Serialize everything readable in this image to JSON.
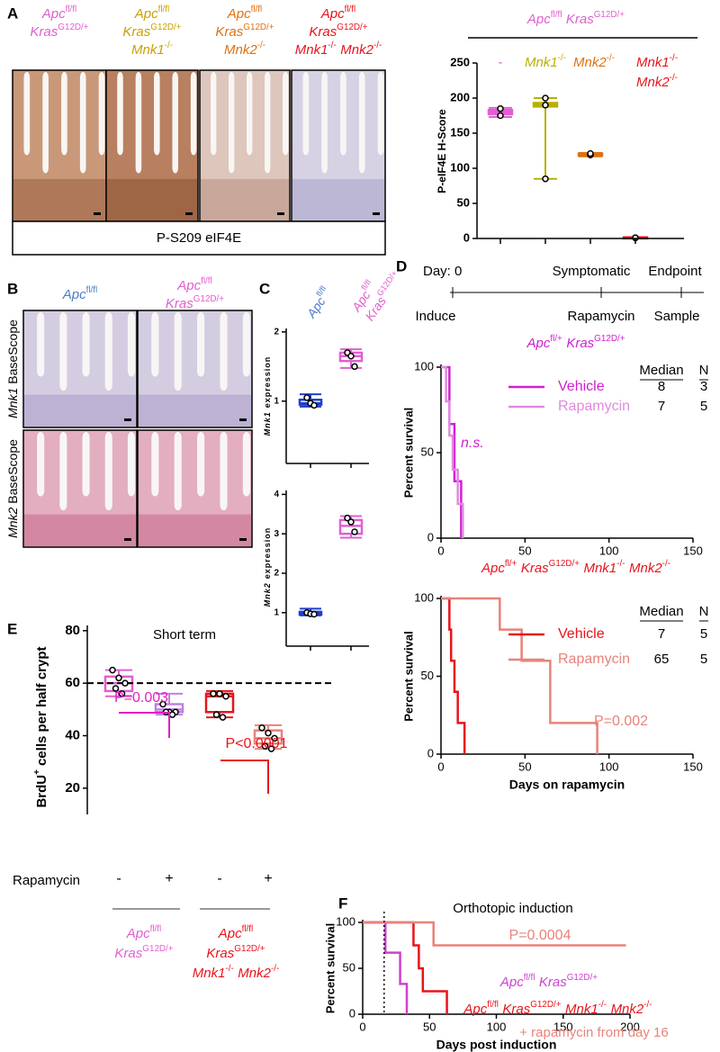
{
  "panel_labels": [
    "A",
    "B",
    "C",
    "D",
    "E",
    "F"
  ],
  "panel_a": {
    "columns": [
      {
        "genotype": [
          [
            [
              "Apc",
              "fl/fl"
            ]
          ],
          [
            [
              "Kras",
              "G12D/+"
            ]
          ]
        ],
        "color": "#e060d0"
      },
      {
        "genotype": [
          [
            [
              "Apc",
              "fl/fl"
            ]
          ],
          [
            [
              "Kras",
              "G12D/+"
            ]
          ],
          [
            [
              "Mnk1",
              "-/-"
            ]
          ]
        ],
        "color": "#c8a000"
      },
      {
        "genotype": [
          [
            [
              "Apc",
              "fl/fl"
            ]
          ],
          [
            [
              "Kras",
              "G12D/+"
            ]
          ],
          [
            [
              "Mnk2",
              "-/-"
            ]
          ]
        ],
        "color": "#e07010"
      },
      {
        "genotype": [
          [
            [
              "Apc",
              "fl/fl"
            ]
          ],
          [
            [
              "Kras",
              "G12D/+"
            ]
          ],
          [
            [
              "Mnk1",
              "-/-"
            ],
            [
              "Mnk2",
              "-/-"
            ]
          ]
        ],
        "color": "#e8141c"
      }
    ],
    "stain": "P-S209 eIF4E"
  },
  "panel_b": {
    "columns": [
      {
        "genotype": [
          [
            [
              "Apc",
              "fl/fl"
            ]
          ]
        ],
        "color": "#4a7cc8"
      },
      {
        "genotype": [
          [
            [
              "Apc",
              "fl/fl"
            ]
          ],
          [
            [
              "Kras",
              "G12D/+"
            ]
          ]
        ],
        "color": "#e060d0"
      }
    ],
    "rows": [
      {
        "gene": "Mnk1",
        "text": "BaseScope"
      },
      {
        "gene": "Mnk2",
        "text": "BaseScope"
      }
    ]
  },
  "panel_d_timeline": {
    "top": [
      "Day: 0",
      "Symptomatic",
      "Endpoint"
    ],
    "bottom": [
      "Induce",
      "Rapamycin",
      "Sample"
    ]
  },
  "chart_data": [
    {
      "type": "box",
      "header": [
        [
          [
            "Apc",
            "fl/fl"
          ],
          [
            "Kras",
            "G12D/+"
          ]
        ]
      ],
      "header_color": "#e060d0",
      "categories": [
        "-",
        [
          [
            [
              "Mnk1",
              "-/-"
            ]
          ]
        ],
        [
          [
            [
              "Mnk2",
              "-/-"
            ]
          ]
        ],
        [
          [
            [
              "Mnk1",
              "-/-"
            ]
          ],
          [
            [
              "Mnk2",
              "-/-"
            ]
          ]
        ]
      ],
      "colors": [
        "#e060d0",
        "#b8b000",
        "#e07010",
        "#e8141c"
      ],
      "ylabel": "P-eIF4E H-Score",
      "ylim": [
        0,
        250
      ],
      "yticks": [
        0,
        50,
        100,
        150,
        200,
        250
      ],
      "boxes": [
        {
          "min": 173,
          "q1": 177,
          "median": 180,
          "q3": 183,
          "max": 186,
          "points": [
            185,
            175
          ]
        },
        {
          "min": 85,
          "q1": 188,
          "median": 190,
          "q3": 193,
          "max": 200,
          "points": [
            200,
            190,
            85
          ]
        },
        {
          "min": 117,
          "q1": 118,
          "median": 120,
          "q3": 121,
          "max": 122,
          "points": [
            120,
            119,
            121
          ]
        },
        {
          "min": 0,
          "q1": 0.5,
          "median": 1,
          "q3": 1.5,
          "max": 2,
          "points": [
            1,
            1,
            1
          ]
        }
      ]
    },
    {
      "type": "box",
      "categories": [
        [
          [
            [
              "Apc",
              "fl/fl"
            ]
          ]
        ],
        [
          [
            [
              "Apc",
              "fl/fl"
            ]
          ],
          [
            [
              "Kras",
              "G12D/+"
            ]
          ]
        ]
      ],
      "colors": [
        "#1f3fd0",
        "#e060d0"
      ],
      "ylabel": {
        "gene": "Mnk1",
        "text": "expression"
      },
      "ylim": [
        0.1,
        2.05
      ],
      "yticks": [
        1,
        2
      ],
      "boxes": [
        {
          "min": 0.92,
          "q1": 0.95,
          "median": 0.97,
          "q3": 1.02,
          "max": 1.1,
          "points": [
            1.05,
            0.97,
            0.94
          ]
        },
        {
          "min": 1.48,
          "q1": 1.58,
          "median": 1.65,
          "q3": 1.7,
          "max": 1.75,
          "points": [
            1.7,
            1.65,
            1.5
          ]
        }
      ]
    },
    {
      "type": "box",
      "colors": [
        "#1f3fd0",
        "#e060d0"
      ],
      "ylabel": {
        "gene": "Mnk2",
        "text": "expression"
      },
      "ylim": [
        0.15,
        4.1
      ],
      "yticks": [
        1,
        2,
        3,
        4
      ],
      "boxes": [
        {
          "min": 0.93,
          "q1": 0.95,
          "median": 0.98,
          "q3": 1.02,
          "max": 1.1,
          "points": [
            1,
            0.97,
            0.96
          ]
        },
        {
          "min": 2.9,
          "q1": 3.0,
          "median": 3.2,
          "q3": 3.35,
          "max": 3.45,
          "points": [
            3.4,
            3.3,
            3.05
          ]
        }
      ]
    },
    {
      "type": "survival",
      "title": [
        [
          [
            "Apc",
            "fl/+"
          ],
          [
            "Kras",
            "G12D/+"
          ]
        ]
      ],
      "title_color": "#d020d0",
      "ylabel": "Percent survival",
      "xlim": [
        0,
        150
      ],
      "ylim": [
        0,
        100
      ],
      "xticks": [
        0,
        50,
        100,
        150
      ],
      "yticks": [
        0,
        50,
        100
      ],
      "table_header": [
        "Median",
        "N"
      ],
      "annotation": "n.s.",
      "annotation_color": "#d020d0",
      "series": [
        {
          "name": "Vehicle",
          "color": "#d020d0",
          "x": [
            0,
            5,
            8,
            12
          ],
          "values": [
            100,
            66.7,
            33.3,
            0
          ],
          "median": 8,
          "n": 3
        },
        {
          "name": "Rapamycin",
          "color": "#e08ae0",
          "x": [
            0,
            3,
            5,
            7,
            10,
            13
          ],
          "values": [
            100,
            80,
            60,
            40,
            20,
            0
          ],
          "median": 7,
          "n": 5
        }
      ]
    },
    {
      "type": "survival",
      "title": [
        [
          [
            "Apc",
            "fl/+"
          ],
          [
            "Kras",
            "G12D/+"
          ],
          [
            "Mnk1",
            "-/-"
          ],
          [
            "Mnk2",
            "-/-"
          ]
        ]
      ],
      "title_color": "#e8141c",
      "ylabel": "Percent survival",
      "xlabel": "Days on rapamycin",
      "xlim": [
        0,
        150
      ],
      "ylim": [
        0,
        100
      ],
      "xticks": [
        0,
        50,
        100,
        150
      ],
      "yticks": [
        0,
        50,
        100
      ],
      "table_header": [
        "Median",
        "N"
      ],
      "annotation": "P=0.002",
      "annotation_color": "#e8837a",
      "series": [
        {
          "name": "Vehicle",
          "color": "#e8141c",
          "x": [
            0,
            5,
            6,
            8,
            10,
            14
          ],
          "values": [
            100,
            80,
            60,
            40,
            20,
            0
          ],
          "median": 7,
          "n": 5
        },
        {
          "name": "Rapamycin",
          "color": "#e8837a",
          "x": [
            0,
            35,
            48,
            65,
            93
          ],
          "values": [
            100,
            80,
            60,
            20,
            0
          ],
          "median": 65,
          "n": 5
        }
      ]
    },
    {
      "type": "box",
      "title": "Short term",
      "ylabel": {
        "name": "BrdU",
        "sup": "+",
        "text": "cells per half crypt"
      },
      "ylim": [
        10,
        82
      ],
      "yticks": [
        20,
        40,
        60,
        80
      ],
      "reference_line": 60,
      "row_label": "Rapamycin",
      "categories": [
        "-",
        "+",
        "-",
        "+"
      ],
      "colors": [
        "#e060d0",
        "#c080e0",
        "#e8141c",
        "#e8837a"
      ],
      "groups": [
        {
          "genotype": [
            [
              [
                "Apc",
                "fl/fl"
              ]
            ],
            [
              [
                "Kras",
                "G12D/+"
              ]
            ]
          ],
          "color": "#e060d0"
        },
        {
          "genotype": [
            [
              [
                "Apc",
                "fl/fl"
              ]
            ],
            [
              [
                "Kras",
                "G12D/+"
              ]
            ],
            [
              [
                "Mnk1",
                "-/-"
              ],
              [
                "Mnk2",
                "-/-"
              ]
            ]
          ],
          "color": "#e8141c"
        }
      ],
      "annotations": [
        {
          "text": "P=0.003",
          "color": "#e020c0"
        },
        {
          "text": "P<0.0001",
          "color": "#e8141c"
        }
      ],
      "boxes": [
        {
          "min": 55,
          "q1": 57,
          "median": 60,
          "q3": 62.5,
          "max": 65,
          "points": [
            65,
            62,
            60,
            58,
            56
          ]
        },
        {
          "min": 48,
          "q1": 49,
          "median": 50,
          "q3": 52,
          "max": 56,
          "points": [
            52,
            49,
            49,
            49,
            48
          ]
        },
        {
          "min": 47,
          "q1": 49,
          "median": 55,
          "q3": 56,
          "max": 57,
          "points": [
            56,
            56,
            55,
            48,
            47
          ]
        },
        {
          "min": 35,
          "q1": 37,
          "median": 39,
          "q3": 42,
          "max": 44,
          "points": [
            43,
            41,
            39,
            36,
            35
          ]
        }
      ]
    },
    {
      "type": "survival",
      "title": "Orthotopic induction",
      "ylabel": "Percent survival",
      "xlabel": "Days post induction",
      "xlim": [
        0,
        200
      ],
      "ylim": [
        0,
        100
      ],
      "xticks": [
        0,
        50,
        100,
        150,
        200
      ],
      "yticks": [
        0,
        50,
        100
      ],
      "marker_day": 16,
      "annotation": "P=0.0004",
      "annotation_color": "#e8837a",
      "series": [
        {
          "name": [
            [
              [
                "Apc",
                "fl/fl"
              ],
              [
                "Kras",
                "G12D/+"
              ]
            ]
          ],
          "color": "#d040d0",
          "x": [
            0,
            17,
            28,
            33
          ],
          "values": [
            100,
            67,
            33,
            0
          ]
        },
        {
          "name": [
            [
              [
                "Apc",
                "fl/fl"
              ],
              [
                "Kras",
                "G12D/+"
              ],
              [
                "Mnk1",
                "-/-"
              ],
              [
                "Mnk2",
                "-/-"
              ]
            ]
          ],
          "color": "#e8141c",
          "x": [
            0,
            38,
            42,
            45,
            63
          ],
          "values": [
            100,
            75,
            50,
            25,
            0
          ]
        },
        {
          "name": "+ rapamycin from day 16",
          "color": "#e8837a",
          "x": [
            0,
            53,
            197
          ],
          "values": [
            100,
            75,
            75
          ]
        }
      ]
    }
  ]
}
